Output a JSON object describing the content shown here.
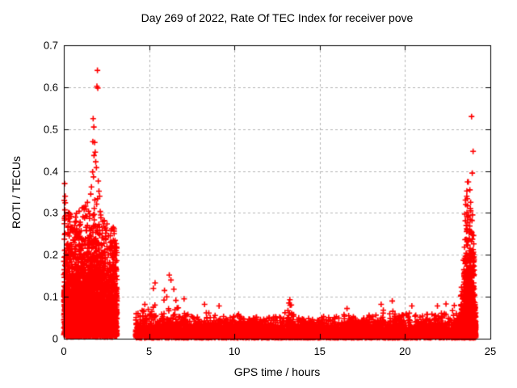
{
  "page": {
    "background": "#ffffff",
    "frame_color": "#000000",
    "grid_color": "#b4b4b4",
    "accent_color": "#ff0000"
  },
  "chart_data": {
    "type": "scatter",
    "title": "Day 269 of 2022, Rate Of TEC Index for receiver pove",
    "xlabel": "GPS time / hours",
    "ylabel": "ROTI / TECUs",
    "xlim": [
      0,
      25
    ],
    "ylim": [
      0,
      0.7
    ],
    "xticks": [
      0,
      5,
      10,
      15,
      20,
      25
    ],
    "yticks": [
      0,
      0.1,
      0.2,
      0.3,
      0.4,
      0.5,
      0.6,
      0.7
    ],
    "xtick_labels": [
      "0",
      "5",
      "10",
      "15",
      "20",
      "25"
    ],
    "ytick_labels": [
      "0",
      "0.1",
      "0.2",
      "0.3",
      "0.4",
      "0.5",
      "0.6",
      "0.7"
    ],
    "grid": {
      "show": true,
      "style": "dashed",
      "color": "#b4b4b4",
      "legend": "none"
    },
    "marker": {
      "shape": "plus",
      "color": "#ff0000",
      "size": 7,
      "stroke_width": 1.6
    },
    "seed": 42,
    "clusters": [
      {
        "name": "morning-active-cluster",
        "x0": 0.0,
        "x1": 3.12,
        "n": 3400,
        "scale": 0.085,
        "vmin": 0.004,
        "envelope": [
          [
            0,
            0.345
          ],
          [
            0.2,
            0.32
          ],
          [
            0.5,
            0.3
          ],
          [
            0.9,
            0.315
          ],
          [
            1.4,
            0.33
          ],
          [
            2.0,
            0.335
          ],
          [
            2.3,
            0.31
          ],
          [
            2.55,
            0.285
          ],
          [
            2.9,
            0.27
          ],
          [
            3.05,
            0.275
          ],
          [
            3.12,
            0.2
          ]
        ]
      },
      {
        "name": "daytime-quiet-band",
        "x0": 4.2,
        "x1": 23.3,
        "n": 5200,
        "scale": 0.016,
        "vmin": 0.002,
        "envelope": [
          [
            4.2,
            0.1
          ],
          [
            4.5,
            0.075
          ],
          [
            4.8,
            0.085
          ],
          [
            5.1,
            0.1
          ],
          [
            5.35,
            0.125
          ],
          [
            5.6,
            0.09
          ],
          [
            5.95,
            0.11
          ],
          [
            6.25,
            0.14
          ],
          [
            6.55,
            0.11
          ],
          [
            6.8,
            0.075
          ],
          [
            7.2,
            0.06
          ],
          [
            7.7,
            0.05
          ],
          [
            8.3,
            0.065
          ],
          [
            9.0,
            0.06
          ],
          [
            9.6,
            0.05
          ],
          [
            10.2,
            0.06
          ],
          [
            10.8,
            0.05
          ],
          [
            11.4,
            0.055
          ],
          [
            12.0,
            0.05
          ],
          [
            12.7,
            0.055
          ],
          [
            13.1,
            0.07
          ],
          [
            13.3,
            0.085
          ],
          [
            13.6,
            0.055
          ],
          [
            14.2,
            0.05
          ],
          [
            14.8,
            0.06
          ],
          [
            15.4,
            0.05
          ],
          [
            16.0,
            0.055
          ],
          [
            16.6,
            0.065
          ],
          [
            17.1,
            0.05
          ],
          [
            17.7,
            0.055
          ],
          [
            18.3,
            0.06
          ],
          [
            18.65,
            0.075
          ],
          [
            19.0,
            0.06
          ],
          [
            19.3,
            0.08
          ],
          [
            19.7,
            0.055
          ],
          [
            20.1,
            0.06
          ],
          [
            20.5,
            0.065
          ],
          [
            21.0,
            0.055
          ],
          [
            21.5,
            0.06
          ],
          [
            22.0,
            0.065
          ],
          [
            22.5,
            0.07
          ],
          [
            22.9,
            0.08
          ],
          [
            23.3,
            0.11
          ]
        ]
      },
      {
        "name": "evening-base-cluster",
        "x0": 23.25,
        "x1": 24.15,
        "n": 900,
        "scale": 0.03,
        "vmin": 0.002,
        "envelope": [
          [
            23.25,
            0.12
          ],
          [
            23.5,
            0.16
          ],
          [
            23.8,
            0.17
          ],
          [
            24.0,
            0.14
          ],
          [
            24.15,
            0.07
          ]
        ]
      },
      {
        "name": "evening-spike-column",
        "x0": 23.42,
        "x1": 24.06,
        "n": 550,
        "scale": 0.105,
        "vmin": 0.01,
        "envelope": [
          [
            23.42,
            0.24
          ],
          [
            23.52,
            0.32
          ],
          [
            23.62,
            0.375
          ],
          [
            23.8,
            0.375
          ],
          [
            23.92,
            0.335
          ],
          [
            24.0,
            0.3
          ],
          [
            24.06,
            0.17
          ]
        ]
      }
    ],
    "spike_points": [
      [
        1.97,
        0.64
      ],
      [
        1.94,
        0.602
      ],
      [
        1.99,
        0.598
      ],
      [
        1.72,
        0.525
      ],
      [
        1.76,
        0.505
      ],
      [
        1.7,
        0.47
      ],
      [
        1.81,
        0.468
      ],
      [
        1.84,
        0.445
      ],
      [
        1.77,
        0.437
      ],
      [
        1.87,
        0.422
      ],
      [
        1.91,
        0.408
      ],
      [
        1.69,
        0.398
      ],
      [
        1.74,
        0.386
      ],
      [
        2.02,
        0.376
      ],
      [
        1.62,
        0.362
      ],
      [
        2.06,
        0.352
      ],
      [
        1.58,
        0.345
      ],
      [
        2.1,
        0.34
      ],
      [
        0.05,
        0.37
      ],
      [
        0.08,
        0.34
      ],
      [
        0.03,
        0.33
      ],
      [
        23.9,
        0.53
      ],
      [
        23.99,
        0.447
      ],
      [
        23.94,
        0.395
      ],
      [
        23.71,
        0.374
      ],
      [
        23.8,
        0.355
      ],
      [
        23.62,
        0.34
      ],
      [
        5.35,
        0.133
      ],
      [
        5.25,
        0.12
      ],
      [
        6.18,
        0.152
      ],
      [
        6.28,
        0.14
      ],
      [
        6.45,
        0.118
      ],
      [
        5.9,
        0.115
      ],
      [
        7.05,
        0.095
      ],
      [
        8.25,
        0.082
      ],
      [
        9.1,
        0.078
      ],
      [
        13.25,
        0.093
      ],
      [
        13.2,
        0.085
      ],
      [
        16.6,
        0.072
      ],
      [
        18.6,
        0.082
      ],
      [
        19.25,
        0.09
      ],
      [
        20.4,
        0.078
      ],
      [
        21.9,
        0.078
      ],
      [
        22.4,
        0.083
      ]
    ]
  }
}
